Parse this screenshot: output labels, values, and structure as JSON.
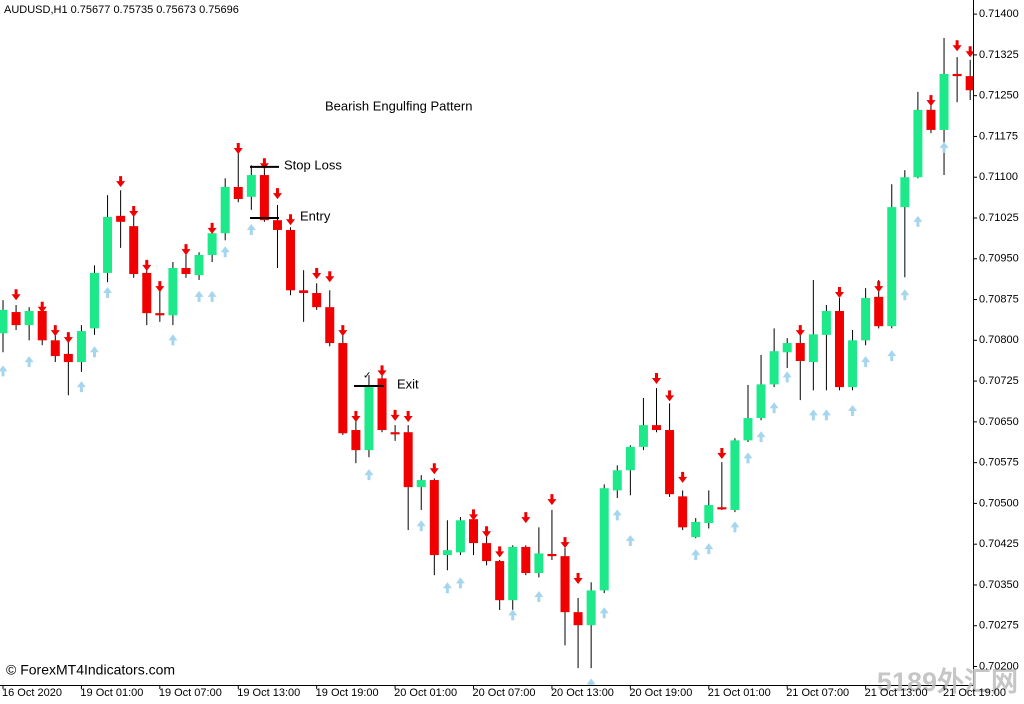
{
  "chart_data": {
    "type": "candlestick",
    "title": "AUDUSD,H1 0.75677 0.75735 0.75673 0.75696",
    "annotation": "Bearish Engulfing Pattern",
    "categories": [
      "16 Oct 2020",
      null,
      null,
      null,
      null,
      null,
      "19 Oct 01:00",
      null,
      null,
      null,
      null,
      null,
      "19 Oct 07:00",
      null,
      null,
      null,
      null,
      null,
      "19 Oct 13:00",
      null,
      null,
      null,
      null,
      null,
      "19 Oct 19:00",
      null,
      null,
      null,
      null,
      null,
      "20 Oct 01:00",
      null,
      null,
      null,
      null,
      null,
      "20 Oct 07:00",
      null,
      null,
      null,
      null,
      null,
      "20 Oct 13:00",
      null,
      null,
      null,
      null,
      null,
      "20 Oct 19:00",
      null,
      null,
      null,
      null,
      null,
      "21 Oct 01:00",
      null,
      null,
      null,
      null,
      null,
      "21 Oct 07:00",
      null,
      null,
      null,
      null,
      null,
      "21 Oct 13:00",
      null,
      null,
      null,
      null,
      null,
      "21 Oct 19:00",
      null,
      null
    ],
    "open": [
      0.70813,
      0.70852,
      0.70828,
      0.70854,
      0.708,
      0.70775,
      0.7076,
      0.70822,
      0.70924,
      0.71029,
      0.7101,
      0.70924,
      0.7085,
      0.70846,
      0.70933,
      0.7092,
      0.70957,
      0.70997,
      0.71082,
      0.71064,
      0.71104,
      0.71021,
      0.71003,
      0.70892,
      0.70887,
      0.70861,
      0.70795,
      0.70635,
      0.70598,
      0.7073,
      0.70631,
      0.70631,
      0.7053,
      0.70543,
      0.70405,
      0.7041,
      0.70471,
      0.70427,
      0.70394,
      0.70322,
      0.7042,
      0.70372,
      0.70407,
      0.70403,
      0.703,
      0.70276,
      0.7034,
      0.70524,
      0.70561,
      0.70604,
      0.70644,
      0.70635,
      0.70513,
      0.70438,
      0.70464,
      0.70493,
      0.70488,
      0.70616,
      0.70657,
      0.70719,
      0.70778,
      0.70795,
      0.7076,
      0.7081,
      0.70854,
      0.70714,
      0.708,
      0.7088,
      0.70826,
      0.71045,
      0.711,
      0.71224,
      0.71187,
      0.7129,
      0.71286
    ],
    "high": [
      0.70874,
      0.70865,
      0.70861,
      0.70865,
      0.70813,
      0.708,
      0.70828,
      0.70938,
      0.71067,
      0.71076,
      0.7103,
      0.70938,
      0.70892,
      0.70944,
      0.7096,
      0.70962,
      0.71006,
      0.71098,
      0.71146,
      0.71122,
      0.71126,
      0.71049,
      0.71008,
      0.70929,
      0.70905,
      0.70892,
      0.7081,
      0.70653,
      0.70736,
      0.70736,
      0.70644,
      0.70644,
      0.70552,
      0.70546,
      0.70469,
      0.70475,
      0.70478,
      0.7044,
      0.70396,
      0.70423,
      0.70423,
      0.70456,
      0.70488,
      0.70418,
      0.70326,
      0.70355,
      0.70535,
      0.7057,
      0.70607,
      0.70694,
      0.70712,
      0.70684,
      0.70524,
      0.70473,
      0.70524,
      0.70576,
      0.7062,
      0.70718,
      0.70773,
      0.70822,
      0.70804,
      0.7081,
      0.70911,
      0.70865,
      0.70878,
      0.70819,
      0.70896,
      0.70911,
      0.71087,
      0.71113,
      0.71257,
      0.71242,
      0.71356,
      0.71321,
      0.71316
    ],
    "low": [
      0.70778,
      0.70819,
      0.708,
      0.70791,
      0.7076,
      0.70699,
      0.70742,
      0.7081,
      0.70907,
      0.7097,
      0.70915,
      0.70828,
      0.70834,
      0.70828,
      0.70915,
      0.70911,
      0.70944,
      0.70984,
      0.71054,
      0.7104,
      0.71018,
      0.70933,
      0.70883,
      0.70834,
      0.70856,
      0.70789,
      0.70626,
      0.70574,
      0.70585,
      0.70631,
      0.70615,
      0.70451,
      0.70488,
      0.70368,
      0.70377,
      0.70405,
      0.70405,
      0.70386,
      0.70304,
      0.70304,
      0.70368,
      0.70364,
      0.70396,
      0.70239,
      0.70197,
      0.70197,
      0.70335,
      0.7051,
      0.70515,
      0.70598,
      0.70631,
      0.70512,
      0.70451,
      0.70436,
      0.70454,
      0.70488,
      0.70484,
      0.70613,
      0.70653,
      0.70714,
      0.70749,
      0.7069,
      0.70708,
      0.70708,
      0.70708,
      0.70708,
      0.70791,
      0.70822,
      0.70822,
      0.70916,
      0.71098,
      0.71181,
      0.71104,
      0.71238,
      0.71242
    ],
    "close": [
      0.70856,
      0.70828,
      0.70854,
      0.708,
      0.70771,
      0.7076,
      0.70817,
      0.70924,
      0.71027,
      0.71018,
      0.70922,
      0.7085,
      0.70846,
      0.70933,
      0.70922,
      0.70957,
      0.70997,
      0.71082,
      0.7106,
      0.71104,
      0.71021,
      0.71003,
      0.70892,
      0.70887,
      0.70861,
      0.70795,
      0.70629,
      0.70598,
      0.70714,
      0.70635,
      0.70627,
      0.7053,
      0.70543,
      0.70405,
      0.70414,
      0.70469,
      0.70427,
      0.70394,
      0.70322,
      0.7042,
      0.70372,
      0.70408,
      0.70403,
      0.703,
      0.70276,
      0.7034,
      0.70528,
      0.70561,
      0.70604,
      0.70644,
      0.70635,
      0.70517,
      0.70456,
      0.70466,
      0.70497,
      0.70489,
      0.70616,
      0.70657,
      0.70719,
      0.7078,
      0.70795,
      0.70762,
      0.70811,
      0.70854,
      0.70714,
      0.708,
      0.70878,
      0.70826,
      0.71045,
      0.711,
      0.71224,
      0.71187,
      0.7129,
      0.71286,
      0.7126
    ],
    "up_color": "#1de98b",
    "down_color": "#f00000",
    "wick_color": "#000000",
    "signals": [
      {
        "direction": "down",
        "color": "#f00000",
        "values": [
          null,
          0.70894,
          null,
          0.70871,
          0.70828,
          0.70815,
          null,
          null,
          null,
          0.71102,
          0.71047,
          0.70948,
          0.70909,
          null,
          0.70977,
          null,
          0.71016,
          null,
          0.71163,
          null,
          0.71135,
          0.7108,
          0.71032,
          null,
          0.70933,
          0.70927,
          0.70828,
          0.7067,
          null,
          0.70754,
          0.70672,
          0.7067,
          null,
          0.70574,
          null,
          null,
          0.70489,
          0.70458,
          0.70421,
          null,
          0.70484,
          null,
          0.70517,
          0.70438,
          0.70372,
          null,
          null,
          null,
          null,
          null,
          0.7074,
          0.70708,
          0.70558,
          null,
          null,
          0.70602,
          null,
          null,
          null,
          null,
          null,
          0.70828,
          null,
          null,
          0.70898,
          null,
          null,
          0.70909,
          null,
          null,
          null,
          0.71251,
          null,
          0.71352,
          0.71341
        ]
      },
      {
        "direction": "up",
        "color": "#a6d6ee",
        "values": [
          0.70754,
          null,
          0.70771,
          null,
          null,
          null,
          0.70725,
          0.70789,
          0.70898,
          null,
          null,
          null,
          null,
          0.70811,
          null,
          0.70891,
          0.70891,
          0.70973,
          null,
          0.71014,
          null,
          null,
          null,
          null,
          null,
          null,
          null,
          null,
          0.70563,
          null,
          null,
          null,
          0.70469,
          null,
          0.70355,
          0.70364,
          null,
          null,
          null,
          0.70305,
          null,
          0.70339,
          null,
          null,
          null,
          0.70178,
          0.70309,
          0.70489,
          0.70442,
          null,
          null,
          null,
          null,
          0.70416,
          0.70427,
          null,
          0.70467,
          0.70594,
          0.70633,
          0.70686,
          0.70743,
          null,
          0.70673,
          0.70673,
          null,
          0.70681,
          0.70771,
          null,
          0.70782,
          0.70894,
          0.71029,
          null,
          0.71165,
          null,
          null
        ]
      }
    ],
    "levels": [
      {
        "label": "Stop Loss",
        "value": 0.71119
      },
      {
        "label": "Entry",
        "value": 0.71025
      },
      {
        "label": "Exit",
        "value": 0.70716
      }
    ],
    "check": "✓",
    "ylim": [
      0.70166,
      0.71426
    ],
    "yticks": [
      {
        "value": 0.714,
        "label": "0.71400"
      },
      0.71325,
      {
        "value": 0.7125,
        "label": "0.71250"
      },
      0.71175,
      {
        "value": 0.711,
        "label": "0.71100"
      },
      0.71025,
      {
        "value": 0.7095,
        "label": "0.70950"
      },
      0.70875,
      {
        "value": 0.708,
        "label": "0.70800"
      },
      0.70725,
      {
        "value": 0.7065,
        "label": "0.70650"
      },
      0.70575,
      {
        "value": 0.705,
        "label": "0.70500"
      },
      0.70425,
      {
        "value": 0.7035,
        "label": "0.70350"
      },
      0.70275,
      {
        "value": 0.702,
        "label": "0.70200"
      }
    ]
  },
  "copyright": "© ForexMT4Indicators.com",
  "watermark": "5189外汇网"
}
